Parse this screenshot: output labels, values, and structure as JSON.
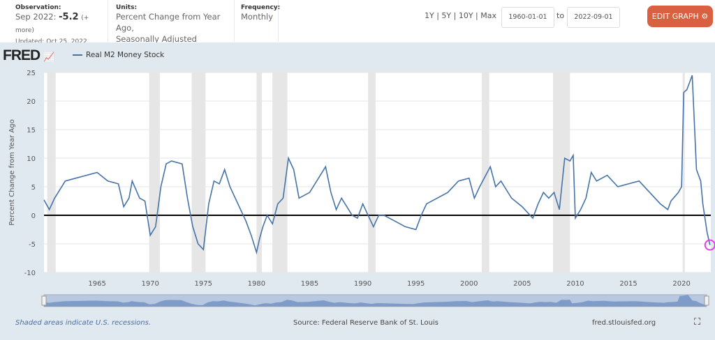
{
  "header": {
    "observation_label": "Observation:",
    "observation_period": "Sep 2022:",
    "observation_value": "-5.2",
    "observation_more": "(+ more)",
    "updated": "Updated: Oct 25, 2022",
    "units_label": "Units:",
    "units_line1": "Percent Change from Year Ago,",
    "units_line2": "Seasonally Adjusted",
    "frequency_label": "Frequency:",
    "frequency": "Monthly",
    "ranges": "1Y | 5Y | 10Y | Max",
    "start_date": "1960-01-01",
    "to": "to",
    "end_date": "2022-09-01",
    "edit_button": "EDIT GRAPH"
  },
  "logo": "FRED",
  "footer": {
    "note": "Shaded areas indicate U.S. recessions.",
    "source": "Source: Federal Reserve Bank of St. Louis",
    "site": "fred.stlouisfed.org"
  },
  "colors": {
    "line": "#4572a7",
    "button": "#d96141",
    "recession": "#e6e6e6",
    "highlight": "#e040e0"
  },
  "chart_data": {
    "type": "line",
    "title": "",
    "xlabel": "",
    "ylabel": "Percent Change from Year Ago",
    "ylim": [
      -10,
      25
    ],
    "xlim": [
      1960,
      2022.75
    ],
    "yticks": [
      -10,
      -5,
      0,
      5,
      10,
      15,
      20,
      25
    ],
    "xticks": [
      1965,
      1970,
      1975,
      1980,
      1985,
      1990,
      1995,
      2000,
      2005,
      2010,
      2015,
      2020
    ],
    "legend": "Real M2 Money Stock",
    "legend_position": "top-left",
    "recessions": [
      [
        1960.3,
        1961.1
      ],
      [
        1969.9,
        1970.9
      ],
      [
        1973.9,
        1975.2
      ],
      [
        1980.0,
        1980.5
      ],
      [
        1981.5,
        1982.9
      ],
      [
        1990.5,
        1991.2
      ],
      [
        2001.2,
        2001.9
      ],
      [
        2007.9,
        2009.5
      ],
      [
        2020.1,
        2020.3
      ]
    ],
    "series": [
      {
        "name": "Real M2 Money Stock",
        "points": [
          [
            1960,
            2.7
          ],
          [
            1960.5,
            1
          ],
          [
            1961,
            3
          ],
          [
            1962,
            6
          ],
          [
            1963,
            6.5
          ],
          [
            1964,
            7
          ],
          [
            1965,
            7.5
          ],
          [
            1966,
            6
          ],
          [
            1967,
            5.5
          ],
          [
            1967.5,
            1.5
          ],
          [
            1968,
            3
          ],
          [
            1968.3,
            6
          ],
          [
            1969,
            3
          ],
          [
            1969.5,
            2.5
          ],
          [
            1970,
            -3.5
          ],
          [
            1970.5,
            -2
          ],
          [
            1971,
            5
          ],
          [
            1971.5,
            9
          ],
          [
            1972,
            9.5
          ],
          [
            1973,
            9
          ],
          [
            1973.5,
            3
          ],
          [
            1974,
            -2
          ],
          [
            1974.5,
            -5
          ],
          [
            1975,
            -6
          ],
          [
            1975.5,
            2
          ],
          [
            1976,
            6
          ],
          [
            1976.5,
            5.5
          ],
          [
            1977,
            8
          ],
          [
            1977.5,
            5
          ],
          [
            1978,
            3
          ],
          [
            1979,
            -1
          ],
          [
            1979.5,
            -3.5
          ],
          [
            1980,
            -6.5
          ],
          [
            1980.3,
            -4
          ],
          [
            1980.6,
            -2
          ],
          [
            1981,
            0
          ],
          [
            1981.5,
            -1.5
          ],
          [
            1982,
            2
          ],
          [
            1982.5,
            3
          ],
          [
            1983,
            10
          ],
          [
            1983.5,
            8
          ],
          [
            1984,
            3
          ],
          [
            1985,
            4
          ],
          [
            1986,
            7
          ],
          [
            1986.5,
            8.5
          ],
          [
            1987,
            4
          ],
          [
            1987.5,
            1
          ],
          [
            1988,
            3
          ],
          [
            1989,
            0
          ],
          [
            1989.5,
            -0.5
          ],
          [
            1990,
            2
          ],
          [
            1991,
            -2
          ],
          [
            1991.5,
            0
          ],
          [
            1992,
            0
          ],
          [
            1993,
            -1
          ],
          [
            1994,
            -2
          ],
          [
            1995,
            -2.5
          ],
          [
            1995.5,
            0
          ],
          [
            1996,
            2
          ],
          [
            1997,
            3
          ],
          [
            1998,
            4
          ],
          [
            1999,
            6
          ],
          [
            2000,
            6.5
          ],
          [
            2000.5,
            3
          ],
          [
            2001,
            5
          ],
          [
            2002,
            8.5
          ],
          [
            2002.5,
            5
          ],
          [
            2003,
            6
          ],
          [
            2004,
            3
          ],
          [
            2005,
            1.5
          ],
          [
            2006,
            -0.5
          ],
          [
            2006.5,
            2
          ],
          [
            2007,
            4
          ],
          [
            2007.5,
            3
          ],
          [
            2008,
            4
          ],
          [
            2008.5,
            1
          ],
          [
            2009,
            10
          ],
          [
            2009.5,
            9.5
          ],
          [
            2009.8,
            10.5
          ],
          [
            2010,
            -0.5
          ],
          [
            2010.5,
            1
          ],
          [
            2011,
            3
          ],
          [
            2011.5,
            7.5
          ],
          [
            2012,
            6
          ],
          [
            2013,
            7
          ],
          [
            2014,
            5
          ],
          [
            2015,
            5.5
          ],
          [
            2016,
            6
          ],
          [
            2017,
            4
          ],
          [
            2018,
            2
          ],
          [
            2018.7,
            1
          ],
          [
            2019,
            2.5
          ],
          [
            2019.7,
            4
          ],
          [
            2020,
            5
          ],
          [
            2020.2,
            21.5
          ],
          [
            2020.5,
            22
          ],
          [
            2021,
            24.5
          ],
          [
            2021.4,
            8
          ],
          [
            2021.8,
            6
          ],
          [
            2022,
            2
          ],
          [
            2022.4,
            -3
          ],
          [
            2022.67,
            -5.2
          ]
        ]
      }
    ]
  }
}
